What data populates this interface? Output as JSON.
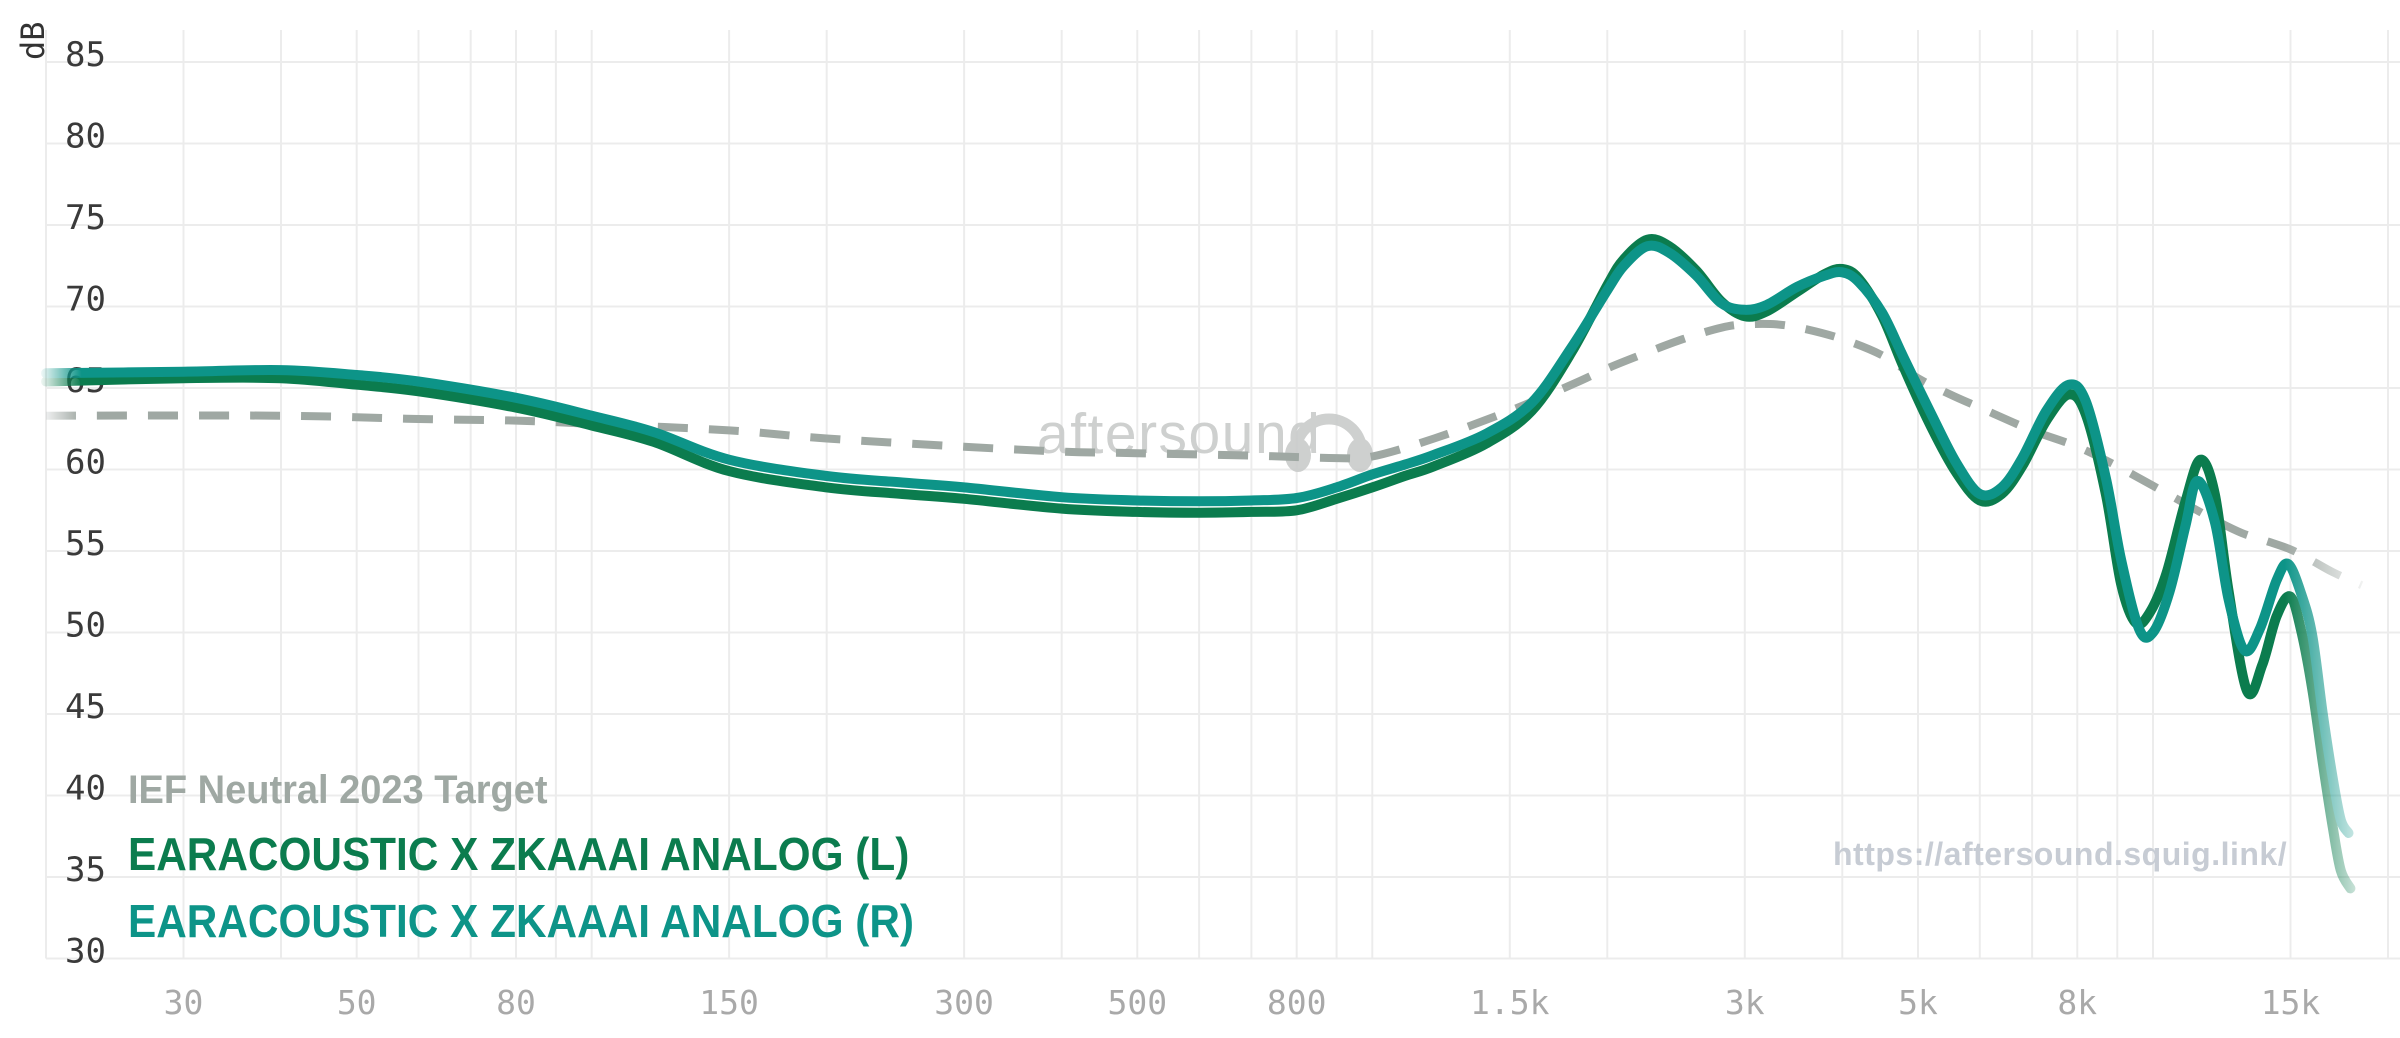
{
  "watermark": {
    "brand": "aftersound",
    "brand_icon": "headphones-icon",
    "url": "https://aftersound.squig.link/",
    "brand_color": "#c9cbca",
    "url_color": "#c7ccd4"
  },
  "legend": {
    "target": {
      "label": "IEF Neutral 2023 Target",
      "color": "#9fa8a3"
    },
    "left": {
      "label": "EARACOUSTIC X ZKAAAI ANALOG (L)",
      "color": "#0b7c4e"
    },
    "right": {
      "label": "EARACOUSTIC X ZKAAAI ANALOG (R)",
      "color": "#0d9488"
    }
  },
  "chart_data": {
    "type": "line",
    "title": "",
    "xlabel": "",
    "ylabel": "dB",
    "x_scale": "log",
    "xlim": [
      20,
      20000
    ],
    "ylim": [
      30,
      85
    ],
    "grid": true,
    "grid_color": "#ececec",
    "background": "#ffffff",
    "y_ticks": [
      85,
      80,
      75,
      70,
      65,
      60,
      55,
      50,
      45,
      40,
      35,
      30
    ],
    "y_tick_color": "#3a3a3a",
    "x_grid_freqs": [
      20,
      30,
      40,
      50,
      60,
      70,
      80,
      90,
      100,
      150,
      200,
      300,
      400,
      500,
      600,
      700,
      800,
      900,
      1000,
      1500,
      2000,
      3000,
      4000,
      5000,
      6000,
      7000,
      8000,
      9000,
      10000,
      15000,
      20000
    ],
    "x_ticks": [
      {
        "f": 30,
        "label": "30"
      },
      {
        "f": 50,
        "label": "50"
      },
      {
        "f": 80,
        "label": "80"
      },
      {
        "f": 150,
        "label": "150"
      },
      {
        "f": 300,
        "label": "300"
      },
      {
        "f": 500,
        "label": "500"
      },
      {
        "f": 800,
        "label": "800"
      },
      {
        "f": 1500,
        "label": "1.5k"
      },
      {
        "f": 3000,
        "label": "3k"
      },
      {
        "f": 5000,
        "label": "5k"
      },
      {
        "f": 8000,
        "label": "8k"
      },
      {
        "f": 15000,
        "label": "15k"
      }
    ],
    "x_tick_color": "#a9a9a9",
    "legend_position": "bottom-left",
    "series": [
      {
        "name": "IEF Neutral 2023 Target",
        "color": "#9fa8a3",
        "dash": "30 21",
        "width": 8,
        "points": [
          [
            20,
            63.3
          ],
          [
            40,
            63.3
          ],
          [
            60,
            63.1
          ],
          [
            80,
            63.0
          ],
          [
            100,
            62.8
          ],
          [
            150,
            62.4
          ],
          [
            200,
            61.9
          ],
          [
            300,
            61.4
          ],
          [
            400,
            61.1
          ],
          [
            500,
            61.0
          ],
          [
            700,
            60.85
          ],
          [
            900,
            60.7
          ],
          [
            1000,
            60.8
          ],
          [
            1200,
            61.9
          ],
          [
            1500,
            63.6
          ],
          [
            1800,
            65.2
          ],
          [
            2000,
            66.2
          ],
          [
            2200,
            67.0
          ],
          [
            2500,
            68.0
          ],
          [
            2800,
            68.7
          ],
          [
            3000,
            68.9
          ],
          [
            3300,
            68.9
          ],
          [
            3600,
            68.6
          ],
          [
            4000,
            68.0
          ],
          [
            4500,
            67.0
          ],
          [
            5000,
            65.6
          ],
          [
            5500,
            64.6
          ],
          [
            6000,
            63.8
          ],
          [
            7000,
            62.4
          ],
          [
            8000,
            61.4
          ],
          [
            9000,
            60.2
          ],
          [
            10000,
            59.0
          ],
          [
            11000,
            57.9
          ],
          [
            12000,
            56.9
          ],
          [
            13000,
            56.1
          ],
          [
            14000,
            55.6
          ],
          [
            15000,
            55.1
          ],
          [
            16000,
            54.4
          ],
          [
            17000,
            53.7
          ],
          [
            18500,
            52.9
          ]
        ]
      },
      {
        "name": "EARACOUSTIC X ZKAAAI ANALOG (L)",
        "color": "#0b7c4e",
        "dash": null,
        "width": 10,
        "points": [
          [
            20,
            65.4
          ],
          [
            30,
            65.6
          ],
          [
            40,
            65.6
          ],
          [
            50,
            65.2
          ],
          [
            60,
            64.8
          ],
          [
            80,
            63.8
          ],
          [
            100,
            62.7
          ],
          [
            120,
            61.7
          ],
          [
            150,
            59.9
          ],
          [
            200,
            58.9
          ],
          [
            250,
            58.5
          ],
          [
            300,
            58.2
          ],
          [
            400,
            57.6
          ],
          [
            500,
            57.4
          ],
          [
            600,
            57.35
          ],
          [
            700,
            57.4
          ],
          [
            800,
            57.5
          ],
          [
            900,
            58.2
          ],
          [
            1000,
            58.9
          ],
          [
            1100,
            59.6
          ],
          [
            1200,
            60.2
          ],
          [
            1400,
            61.6
          ],
          [
            1600,
            63.6
          ],
          [
            1800,
            67.2
          ],
          [
            2000,
            71.3
          ],
          [
            2100,
            72.9
          ],
          [
            2250,
            74.1
          ],
          [
            2400,
            73.7
          ],
          [
            2600,
            72.2
          ],
          [
            2800,
            70.3
          ],
          [
            3000,
            69.4
          ],
          [
            3200,
            69.7
          ],
          [
            3500,
            70.9
          ],
          [
            3800,
            72.0
          ],
          [
            4000,
            72.3
          ],
          [
            4200,
            71.7
          ],
          [
            4500,
            69.4
          ],
          [
            4800,
            66.2
          ],
          [
            5200,
            62.6
          ],
          [
            5600,
            59.8
          ],
          [
            6000,
            58.1
          ],
          [
            6400,
            58.5
          ],
          [
            6800,
            60.2
          ],
          [
            7300,
            63.0
          ],
          [
            7800,
            64.6
          ],
          [
            8200,
            63.4
          ],
          [
            8700,
            58.5
          ],
          [
            9100,
            53.0
          ],
          [
            9500,
            50.6
          ],
          [
            9900,
            51.2
          ],
          [
            10400,
            53.6
          ],
          [
            11000,
            58.0
          ],
          [
            11500,
            60.6
          ],
          [
            12000,
            58.5
          ],
          [
            12500,
            52.5
          ],
          [
            13200,
            46.4
          ],
          [
            13800,
            48.0
          ],
          [
            14400,
            51.0
          ],
          [
            15000,
            52.2
          ],
          [
            15500,
            50.0
          ],
          [
            16000,
            46.5
          ],
          [
            16500,
            42.0
          ],
          [
            17000,
            38.0
          ],
          [
            17400,
            35.4
          ],
          [
            17900,
            34.3
          ]
        ]
      },
      {
        "name": "EARACOUSTIC X ZKAAAI ANALOG (R)",
        "color": "#0d9488",
        "dash": null,
        "width": 10,
        "points": [
          [
            20,
            65.9
          ],
          [
            30,
            66.0
          ],
          [
            40,
            66.1
          ],
          [
            50,
            65.8
          ],
          [
            60,
            65.4
          ],
          [
            80,
            64.4
          ],
          [
            100,
            63.3
          ],
          [
            120,
            62.3
          ],
          [
            150,
            60.6
          ],
          [
            200,
            59.6
          ],
          [
            250,
            59.2
          ],
          [
            300,
            58.9
          ],
          [
            400,
            58.3
          ],
          [
            500,
            58.1
          ],
          [
            600,
            58.05
          ],
          [
            700,
            58.1
          ],
          [
            800,
            58.25
          ],
          [
            900,
            58.9
          ],
          [
            1000,
            59.7
          ],
          [
            1100,
            60.3
          ],
          [
            1200,
            60.9
          ],
          [
            1400,
            62.2
          ],
          [
            1600,
            64.1
          ],
          [
            1800,
            67.5
          ],
          [
            2000,
            71.0
          ],
          [
            2100,
            72.5
          ],
          [
            2250,
            73.7
          ],
          [
            2400,
            73.3
          ],
          [
            2600,
            71.9
          ],
          [
            2800,
            70.2
          ],
          [
            3000,
            69.8
          ],
          [
            3200,
            70.1
          ],
          [
            3500,
            71.2
          ],
          [
            3800,
            71.9
          ],
          [
            4000,
            72.1
          ],
          [
            4200,
            71.5
          ],
          [
            4500,
            69.6
          ],
          [
            4800,
            66.8
          ],
          [
            5200,
            63.4
          ],
          [
            5600,
            60.4
          ],
          [
            6000,
            58.5
          ],
          [
            6400,
            58.9
          ],
          [
            6800,
            60.7
          ],
          [
            7300,
            63.6
          ],
          [
            7800,
            65.2
          ],
          [
            8200,
            64.2
          ],
          [
            8700,
            59.5
          ],
          [
            9100,
            54.5
          ],
          [
            9600,
            50.2
          ],
          [
            10000,
            50.0
          ],
          [
            10500,
            52.5
          ],
          [
            11000,
            56.5
          ],
          [
            11400,
            59.3
          ],
          [
            12000,
            56.8
          ],
          [
            12500,
            52.0
          ],
          [
            13100,
            48.9
          ],
          [
            13700,
            50.2
          ],
          [
            14400,
            53.2
          ],
          [
            14900,
            54.2
          ],
          [
            15500,
            52.3
          ],
          [
            16000,
            49.8
          ],
          [
            16500,
            45.0
          ],
          [
            17000,
            41.0
          ],
          [
            17400,
            38.5
          ],
          [
            17800,
            37.7
          ]
        ]
      }
    ]
  }
}
